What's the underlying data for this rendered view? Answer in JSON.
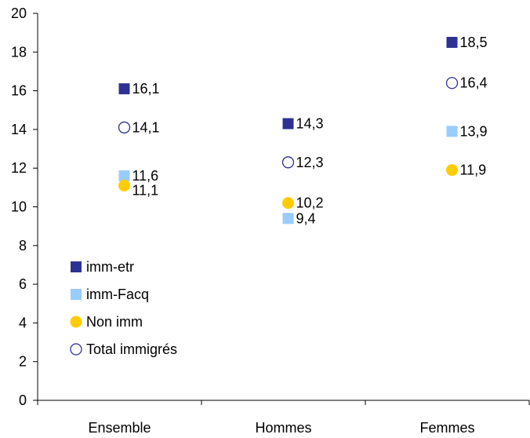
{
  "chart_data": {
    "type": "scatter",
    "categories": [
      "Ensemble",
      "Hommes",
      "Femmes"
    ],
    "ylim": [
      0,
      20
    ],
    "yticks": [
      0,
      2,
      4,
      6,
      8,
      10,
      12,
      14,
      16,
      18,
      20
    ],
    "grid": false,
    "legend_position": "bottom-left",
    "series": [
      {
        "name": "imm-etr",
        "marker": "square",
        "color": "#2E3192",
        "filled": true,
        "values": [
          16.1,
          14.3,
          18.5
        ],
        "labels": [
          "16,1",
          "14,3",
          "18,5"
        ]
      },
      {
        "name": "imm-Facq",
        "marker": "square",
        "color": "#99CCFF",
        "filled": true,
        "values": [
          11.6,
          9.4,
          13.9
        ],
        "labels": [
          "11,6",
          "9,4",
          "13,9"
        ]
      },
      {
        "name": "Non imm",
        "marker": "circle",
        "color": "#FFCC00",
        "filled": true,
        "values": [
          11.1,
          10.2,
          11.9
        ],
        "labels": [
          "11,1",
          "10,2",
          "11,9"
        ]
      },
      {
        "name": "Total immigrés",
        "marker": "circle",
        "color": "#2E3192",
        "filled": false,
        "values": [
          14.1,
          12.3,
          16.4
        ],
        "labels": [
          "14,1",
          "12,3",
          "16,4"
        ]
      }
    ]
  }
}
